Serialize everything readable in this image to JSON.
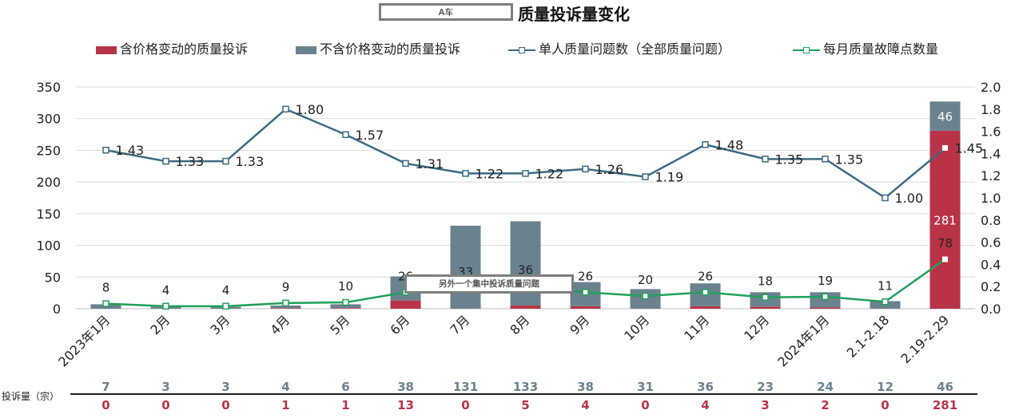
{
  "header": {
    "subject_box": "A车",
    "title": "质量投诉量变化"
  },
  "legend": {
    "items": [
      {
        "label": "含价格变动的质量投诉",
        "kind": "bar",
        "color": "#b83347"
      },
      {
        "label": "不含价格变动的质量投诉",
        "kind": "bar",
        "color": "#6a828e"
      },
      {
        "label": "单人质量问题数（全部质量问题）",
        "kind": "line",
        "color": "#3b6a84"
      },
      {
        "label": "每月质量故障点数量",
        "kind": "line",
        "color": "#1fa05a"
      }
    ]
  },
  "annotation": {
    "text": "另外一个集中投诉质量问题"
  },
  "table": {
    "row_label": "投诉量（宗）"
  },
  "colors": {
    "red": "#b83347",
    "gray": "#6a828e",
    "blue": "#3b6a84",
    "green": "#1fa05a",
    "grid": "#d9d9d9"
  },
  "chart_data": {
    "type": "bar",
    "categories": [
      "2023年1月",
      "2月",
      "3月",
      "4月",
      "5月",
      "6月",
      "7月",
      "8月",
      "9月",
      "10月",
      "11月",
      "12月",
      "2024年1月",
      "2.1-2.18",
      "2.19-2.29"
    ],
    "series": [
      {
        "name": "含价格变动的质量投诉",
        "type": "bar",
        "stack": "complaints",
        "axis": "left",
        "values": [
          0,
          0,
          0,
          1,
          1,
          13,
          0,
          5,
          4,
          0,
          4,
          3,
          2,
          0,
          281
        ]
      },
      {
        "name": "不含价格变动的质量投诉",
        "type": "bar",
        "stack": "complaints",
        "axis": "left",
        "values": [
          7,
          3,
          3,
          4,
          6,
          38,
          131,
          133,
          38,
          31,
          36,
          23,
          24,
          12,
          46
        ]
      },
      {
        "name": "单人质量问题数（全部质量问题）",
        "type": "line",
        "axis": "right",
        "values": [
          1.43,
          1.33,
          1.33,
          1.8,
          1.57,
          1.31,
          1.22,
          1.22,
          1.26,
          1.19,
          1.48,
          1.35,
          1.35,
          1.0,
          1.45
        ]
      },
      {
        "name": "每月质量故障点数量",
        "type": "line",
        "axis": "left",
        "values": [
          8,
          4,
          4,
          9,
          10,
          26,
          33,
          36,
          26,
          20,
          26,
          18,
          19,
          11,
          78
        ]
      }
    ],
    "y_left": {
      "min": 0,
      "max": 350,
      "ticks": [
        0,
        50,
        100,
        150,
        200,
        250,
        300,
        350
      ]
    },
    "y_right": {
      "min": 0,
      "max": 2.0,
      "ticks": [
        "0.0",
        "0.2",
        "0.4",
        "0.6",
        "0.8",
        "1.0",
        "1.2",
        "1.4",
        "1.6",
        "1.8",
        "2.0"
      ]
    },
    "grid": true,
    "legend_position": "top"
  }
}
